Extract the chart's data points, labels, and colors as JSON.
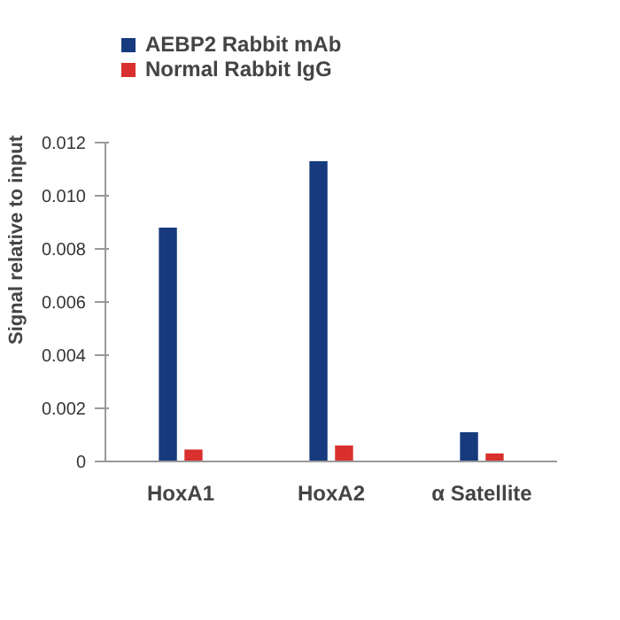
{
  "chart_data": {
    "type": "bar",
    "ylabel": "Signal relative to input",
    "categories": [
      "HoxA1",
      "HoxA2",
      "α Satellite"
    ],
    "series": [
      {
        "name": "AEBP2 Rabbit mAb",
        "color": "#173a7e",
        "values": [
          0.0088,
          0.0113,
          0.0011
        ]
      },
      {
        "name": "Normal Rabbit IgG",
        "color": "#d9302f",
        "values": [
          0.00045,
          0.0006,
          0.0003
        ]
      }
    ],
    "ylim": [
      0,
      0.012
    ],
    "yticks": [
      {
        "value": 0,
        "label": "0"
      },
      0.002,
      0.004,
      0.006,
      0.008,
      {
        "value": 0.01,
        "label": "0.010"
      },
      0.012
    ],
    "grid": false,
    "legend": "top left"
  }
}
